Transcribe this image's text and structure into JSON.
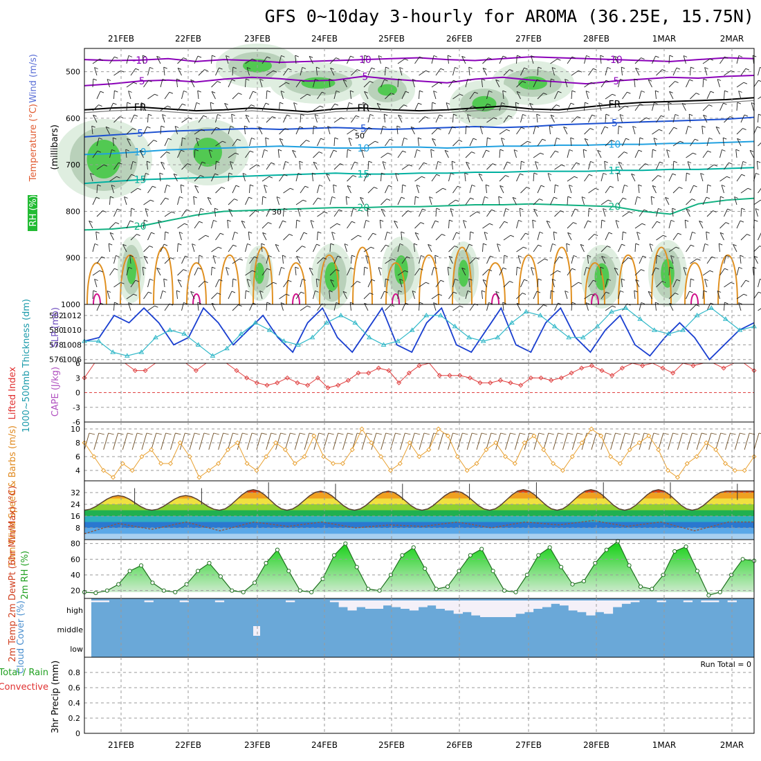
{
  "chart_data": {
    "type": "meteogram",
    "title": "GFS 0~10day 3-hourly for AROMA (36.25E, 15.75N)",
    "dates": [
      "21FEB",
      "22FEB",
      "23FEB",
      "24FEB",
      "25FEB",
      "26FEB",
      "27FEB",
      "28FEB",
      "1MAR",
      "2MAR"
    ],
    "panels": {
      "upper_air": {
        "ylabel": "(millibars)",
        "legend": [
          "Wind (m/s)",
          "Temperature (°C)",
          "RH (%)"
        ],
        "yticks": [
          "500",
          "600",
          "700",
          "800",
          "900",
          "1000"
        ],
        "ylim": [
          450,
          1000
        ],
        "isotherms": [
          {
            "label": "-10",
            "color": "#8a00b8",
            "values": [
              474,
              476,
              475,
              472,
              478,
              474,
              476,
              480,
              478,
              476,
              474,
              472,
              470,
              474,
              476,
              472,
              468,
              470,
              472,
              474,
              476,
              478,
              474,
              470,
              472
            ]
          },
          {
            "label": "-5",
            "color": "#8a00b8",
            "values": [
              530,
              526,
              520,
              518,
              522,
              516,
              512,
              515,
              520,
              518,
              510,
              516,
              520,
              524,
              516,
              512,
              518,
              522,
              526,
              520,
              516,
              512,
              514,
              510,
              508
            ]
          },
          {
            "label": "FR",
            "color": "#000000",
            "values": [
              582,
              578,
              576,
              580,
              584,
              582,
              578,
              582,
              586,
              580,
              578,
              582,
              584,
              582,
              578,
              574,
              580,
              582,
              576,
              570,
              566,
              564,
              562,
              560,
              556
            ]
          },
          {
            "label": "5",
            "color": "#1b4fd0",
            "values": [
              640,
              636,
              632,
              628,
              626,
              624,
              622,
              624,
              622,
              620,
              622,
              624,
              622,
              620,
              618,
              620,
              618,
              614,
              612,
              610,
              608,
              606,
              604,
              602,
              598
            ]
          },
          {
            "label": "10",
            "color": "#1fa0e0",
            "values": [
              678,
              676,
              672,
              668,
              666,
              664,
              662,
              660,
              662,
              664,
              664,
              662,
              662,
              664,
              662,
              660,
              660,
              658,
              658,
              656,
              656,
              654,
              654,
              652,
              650
            ]
          },
          {
            "label": "15",
            "color": "#00b0a0",
            "values": [
              740,
              736,
              732,
              730,
              728,
              726,
              724,
              722,
              720,
              718,
              720,
              720,
              718,
              718,
              716,
              716,
              714,
              714,
              714,
              712,
              712,
              710,
              710,
              708,
              706
            ]
          },
          {
            "label": "20",
            "color": "#10b080",
            "values": [
              840,
              838,
              832,
              820,
              808,
              800,
              798,
              796,
              794,
              792,
              792,
              790,
              790,
              788,
              786,
              786,
              784,
              786,
              788,
              790,
              800,
              806,
              784,
              776,
              772
            ]
          }
        ],
        "cloud_contours": [
          "30",
          "50"
        ]
      },
      "slp_thickness": {
        "ylabel_left": "1000~500mb Thickness (dm)",
        "ylabel_right": "SLP (mb)",
        "yticks_left": [
          "576",
          "578",
          "580",
          "582"
        ],
        "yticks_right": [
          "1006",
          "1008",
          "1010",
          "1012"
        ],
        "ylim_slp": [
          1005.5,
          1013.5
        ],
        "slp": [
          1008.5,
          1009,
          1012,
          1011,
          1013,
          1011,
          1008,
          1009,
          1013,
          1011,
          1008,
          1010,
          1012,
          1009,
          1007,
          1011,
          1013,
          1009,
          1007,
          1010,
          1013,
          1008,
          1007,
          1011,
          1013,
          1008,
          1007,
          1010,
          1013,
          1008,
          1007,
          1011,
          1013,
          1009,
          1007,
          1010,
          1012,
          1008,
          1006.5,
          1009,
          1011,
          1009,
          1006,
          1008,
          1010,
          1011
        ],
        "thickness": [
          578.5,
          578.5,
          577,
          576.5,
          577,
          579,
          580,
          579.5,
          578,
          576.5,
          577.5,
          579.5,
          581,
          580,
          578.5,
          578,
          579,
          581,
          582,
          581,
          579,
          578,
          578.5,
          580,
          582,
          582,
          580.5,
          579,
          578.5,
          579,
          581,
          582.5,
          582,
          580.5,
          579,
          579,
          580.5,
          582.5,
          583,
          581.5,
          580,
          579.5,
          580,
          582,
          583,
          581.5,
          580,
          580.5
        ]
      },
      "stability": {
        "ylabel_left": "Lifted Index",
        "ylabel_right": "CAPE (J/kg)",
        "yticks": [
          "6",
          "3",
          "0",
          "-3",
          "-6"
        ],
        "ylim": [
          6,
          -6
        ],
        "lifted_index": [
          3,
          6,
          6,
          6,
          6,
          4.5,
          4.5,
          6,
          6,
          6,
          6,
          4.5,
          6,
          6,
          6,
          4.5,
          3,
          2,
          1.5,
          2,
          3,
          2,
          1.5,
          3,
          1,
          1.5,
          2.5,
          4,
          4,
          5,
          4.5,
          2,
          4,
          5.5,
          6,
          3.5,
          3.5,
          3.5,
          3,
          2,
          2,
          2.5,
          2,
          1.5,
          3,
          3,
          2.5,
          3,
          4,
          5,
          5.5,
          4.5,
          3.5,
          5,
          6,
          5.5,
          6,
          5,
          4,
          6,
          5.5,
          6,
          6,
          5,
          6,
          6,
          4.5
        ]
      },
      "wind10m": {
        "ylabel": "10m Wind Speed & Barbs (m/s)",
        "yticks": [
          "4",
          "6",
          "8",
          "10"
        ],
        "ylim": [
          2.5,
          11
        ],
        "speed": [
          8,
          6,
          4,
          3,
          5,
          4,
          6,
          7,
          5,
          5,
          8,
          6,
          3,
          4,
          5,
          7,
          8,
          5,
          4,
          6,
          8,
          7,
          5,
          6,
          9,
          6,
          5,
          5,
          7,
          10,
          8,
          6,
          4,
          5,
          8,
          6,
          7,
          10,
          9,
          6,
          4,
          5,
          7,
          8,
          6,
          5,
          8,
          9,
          7,
          5,
          4,
          6,
          8,
          10,
          9,
          6,
          5,
          7,
          8,
          9,
          7,
          4,
          3,
          5,
          6,
          8,
          7,
          5,
          4,
          4,
          6
        ]
      },
      "temperature": {
        "ylabel": "2m Temp 2m DewPt (6hr Min/Max) (°C)",
        "yticks": [
          "8",
          "16",
          "24",
          "32"
        ],
        "ylim": [
          0,
          40
        ],
        "temp": [
          20,
          30,
          20,
          30,
          20,
          34,
          20,
          33,
          20,
          33,
          20,
          33,
          20,
          34,
          20,
          34,
          20,
          34,
          20,
          33
        ],
        "dewpoint": [
          4,
          11,
          7,
          12,
          6,
          12,
          9,
          12,
          8,
          10,
          9,
          12,
          8,
          12,
          10,
          13,
          9,
          12,
          6,
          12
        ]
      },
      "rh2m": {
        "ylabel": "2m RH (%)",
        "yticks": [
          "20",
          "40",
          "60",
          "80"
        ],
        "ylim": [
          10,
          85
        ],
        "rh": [
          18,
          17,
          20,
          28,
          45,
          52,
          30,
          20,
          18,
          28,
          45,
          55,
          38,
          20,
          18,
          30,
          55,
          72,
          45,
          20,
          18,
          35,
          65,
          80,
          50,
          22,
          20,
          40,
          65,
          75,
          48,
          22,
          25,
          45,
          65,
          73,
          45,
          20,
          18,
          40,
          65,
          75,
          50,
          28,
          32,
          55,
          72,
          83,
          52,
          25,
          22,
          40,
          70,
          76,
          45,
          14,
          18,
          40,
          60,
          58
        ]
      },
      "cloud_cover": {
        "ylabel": "Cloud Cover (%)",
        "levels": [
          "high",
          "middle",
          "low"
        ],
        "high_cover": [
          0.1,
          0.1,
          0,
          0,
          0,
          0,
          0.1,
          0,
          0,
          0,
          0.1,
          0,
          0,
          0,
          0.1,
          0,
          0,
          0,
          0,
          0,
          0,
          0,
          0.1,
          0,
          0,
          0,
          0,
          0.1,
          0.4,
          0.6,
          0.4,
          0.5,
          0.5,
          0.3,
          0.4,
          0.5,
          0.6,
          0.4,
          0.3,
          0.5,
          0.6,
          0.8,
          0.7,
          0.9,
          1,
          1,
          1,
          1,
          0.8,
          0.7,
          0.5,
          0.4,
          0.2,
          0.3,
          0.6,
          0.7,
          0.9,
          0.7,
          0.8,
          0.4,
          0.2,
          0.1,
          0,
          0,
          0.1,
          0,
          0,
          0.1,
          0,
          0.1,
          0.1,
          0,
          0.1,
          0,
          0
        ]
      },
      "precip": {
        "ylabel": "3hr Precip (mm)",
        "legend_left": [
          "Total / Rain",
          "Convective"
        ],
        "yticks": [
          "0",
          "0.2",
          "0.4",
          "0.6",
          "0.8"
        ],
        "ylim": [
          0,
          1
        ],
        "run_total_label": "Run Total = 0",
        "values": []
      }
    }
  }
}
